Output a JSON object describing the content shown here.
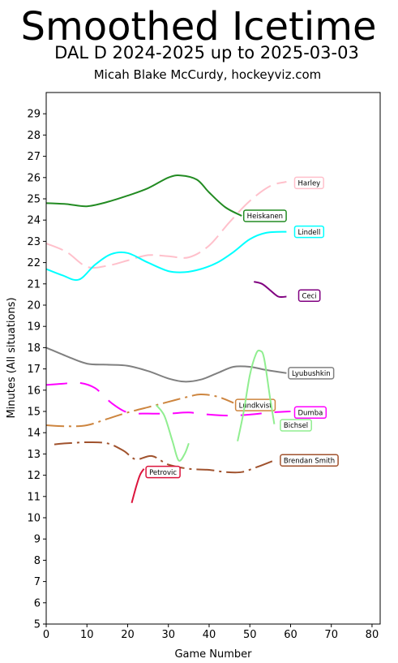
{
  "chart_data": {
    "type": "line",
    "title": "Smoothed Icetime",
    "subtitle": "DAL D 2024-2025 up to 2025-03-03",
    "credit": "Micah Blake McCurdy, hockeyviz.com",
    "xlabel": "Game Number",
    "ylabel": "Minutes (All situations)",
    "xlim": [
      0,
      82
    ],
    "ylim": [
      5,
      30
    ],
    "xticks": [
      0,
      10,
      20,
      30,
      40,
      50,
      60,
      70,
      80
    ],
    "yticks": [
      5,
      6,
      7,
      8,
      9,
      10,
      11,
      12,
      13,
      14,
      15,
      16,
      17,
      18,
      19,
      20,
      21,
      22,
      23,
      24,
      25,
      26,
      27,
      28,
      29
    ],
    "grid": false,
    "series": [
      {
        "name": "Heiskanen",
        "color": "#228b22",
        "dash": "solid",
        "x": [
          0,
          5,
          10,
          15,
          20,
          25,
          30,
          33,
          37,
          40,
          44,
          48
        ],
        "y": [
          24.8,
          24.75,
          24.65,
          24.85,
          25.15,
          25.5,
          26.0,
          26.1,
          25.9,
          25.3,
          24.6,
          24.2
        ],
        "label_x": 48.5,
        "label_y": 24.2
      },
      {
        "name": "Harley",
        "color": "#ffc0cb",
        "dash": "long",
        "x": [
          0,
          5,
          10,
          15,
          20,
          25,
          30,
          35,
          40,
          45,
          50,
          55,
          59
        ],
        "y": [
          22.9,
          22.5,
          21.8,
          21.85,
          22.1,
          22.35,
          22.3,
          22.25,
          22.8,
          23.9,
          24.9,
          25.6,
          25.8
        ],
        "label_x": 61,
        "label_y": 25.75
      },
      {
        "name": "Lindell",
        "color": "#00ffff",
        "dash": "solid",
        "x": [
          0,
          4,
          8,
          12,
          16,
          20,
          25,
          30,
          34,
          38,
          42,
          46,
          50,
          54,
          59
        ],
        "y": [
          21.7,
          21.4,
          21.2,
          21.9,
          22.4,
          22.45,
          22.0,
          21.6,
          21.55,
          21.7,
          22.0,
          22.5,
          23.1,
          23.4,
          23.45
        ],
        "label_x": 61,
        "label_y": 23.45
      },
      {
        "name": "Ceci",
        "color": "#800080",
        "dash": "solid",
        "x": [
          51,
          53,
          55,
          57,
          59
        ],
        "y": [
          21.1,
          21.0,
          20.7,
          20.4,
          20.4
        ],
        "label_x": 62,
        "label_y": 20.45
      },
      {
        "name": "Lyubushkin",
        "color": "#808080",
        "dash": "solid",
        "x": [
          0,
          5,
          10,
          15,
          20,
          25,
          30,
          34,
          38,
          42,
          46,
          50,
          54,
          59
        ],
        "y": [
          18.0,
          17.6,
          17.25,
          17.2,
          17.15,
          16.9,
          16.55,
          16.4,
          16.5,
          16.8,
          17.1,
          17.1,
          16.95,
          16.8
        ],
        "label_x": 59.5,
        "label_y": 16.8
      },
      {
        "name": "Dumba",
        "color": "#ff00ff",
        "dash": "longgap",
        "x": [
          0,
          4,
          8,
          12,
          16,
          20,
          25,
          30,
          35,
          40,
          45,
          50,
          55,
          60
        ],
        "y": [
          16.25,
          16.3,
          16.35,
          16.1,
          15.4,
          14.95,
          14.9,
          14.9,
          14.95,
          14.85,
          14.8,
          14.85,
          14.95,
          15.0
        ],
        "label_x": 61,
        "label_y": 14.95
      },
      {
        "name": "Lundkvist",
        "color": "#cd853f",
        "dash": "dashdot",
        "x": [
          0,
          5,
          10,
          15,
          20,
          25,
          30,
          35,
          38,
          42,
          46
        ],
        "y": [
          14.35,
          14.3,
          14.35,
          14.65,
          14.95,
          15.2,
          15.45,
          15.7,
          15.8,
          15.7,
          15.4
        ],
        "label_x": 46.5,
        "label_y": 15.3
      },
      {
        "name": "Bichsel",
        "color": "#90ee90",
        "dash": "solid",
        "segments": [
          {
            "x": [
              27,
              29,
              31,
              32.5,
              34,
              35
            ],
            "y": [
              15.3,
              14.8,
              13.6,
              12.7,
              13.0,
              13.5
            ]
          },
          {
            "x": [
              47,
              48.5,
              50,
              51.5,
              52.5,
              53.5,
              55,
              56
            ],
            "y": [
              13.6,
              15.0,
              16.7,
              17.7,
              17.85,
              17.5,
              15.6,
              14.4
            ]
          }
        ],
        "label_x": 57.5,
        "label_y": 14.35
      },
      {
        "name": "Brendan Smith",
        "color": "#a0522d",
        "dash": "dashdot",
        "x": [
          2,
          5,
          10,
          15,
          19,
          22,
          26,
          30,
          35,
          40,
          44,
          48,
          52,
          56
        ],
        "y": [
          13.45,
          13.5,
          13.55,
          13.5,
          13.15,
          12.75,
          12.9,
          12.5,
          12.3,
          12.25,
          12.15,
          12.15,
          12.4,
          12.7
        ],
        "label_x": 57.5,
        "label_y": 12.7
      },
      {
        "name": "Petrovic",
        "color": "#dc143c",
        "dash": "solid",
        "x": [
          21,
          22,
          23,
          24
        ],
        "y": [
          10.7,
          11.4,
          12.0,
          12.3
        ],
        "label_x": 24.5,
        "label_y": 12.15
      }
    ]
  }
}
